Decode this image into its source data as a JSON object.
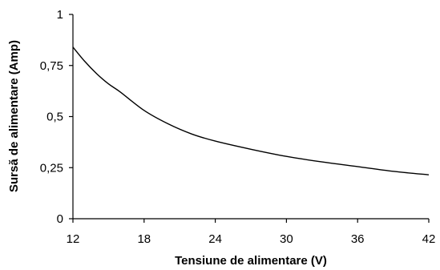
{
  "chart_data": {
    "type": "line",
    "xlabel": "Tensiune de alimentare (V)",
    "ylabel": "Sursă de alimentare (Amp)",
    "xlim": [
      12,
      42
    ],
    "ylim": [
      0,
      1
    ],
    "x_ticks": [
      12,
      18,
      24,
      30,
      36,
      42
    ],
    "y_ticks": [
      0,
      0.25,
      0.5,
      0.75,
      1
    ],
    "x_tick_labels": [
      "12",
      "18",
      "24",
      "30",
      "36",
      "42"
    ],
    "y_tick_labels": [
      "0",
      "0,25",
      "0,5",
      "0,75",
      "1"
    ],
    "grid": false,
    "legend": false,
    "series": [
      {
        "x": [
          12,
          13,
          14,
          15,
          16,
          18,
          20,
          22,
          24,
          27,
          30,
          33,
          36,
          39,
          42
        ],
        "y": [
          0.84,
          0.77,
          0.71,
          0.66,
          0.62,
          0.53,
          0.465,
          0.415,
          0.38,
          0.34,
          0.305,
          0.278,
          0.255,
          0.232,
          0.215
        ],
        "color": "#000000"
      }
    ]
  }
}
